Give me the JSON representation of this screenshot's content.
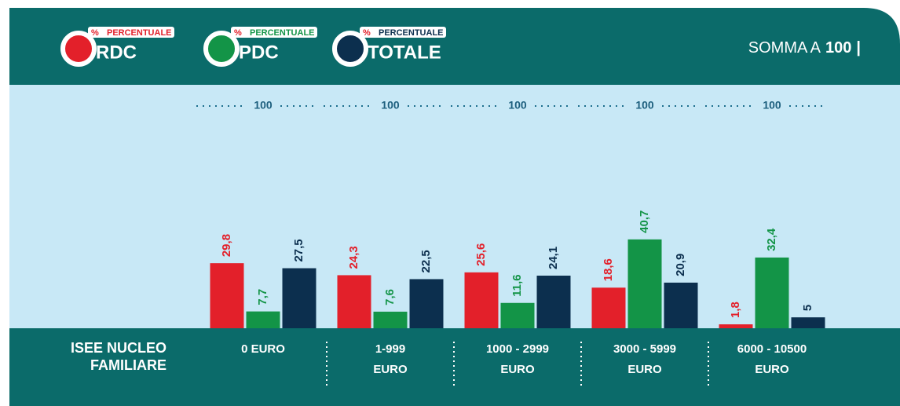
{
  "chart_data": {
    "type": "bar",
    "legend_tag": "PERCENTUALE",
    "percent_sign": "%",
    "summary": {
      "text": "SOMMA A",
      "value": 100,
      "separator": "|"
    },
    "group_sum": 100,
    "x_label": [
      "ISEE NUCLEO",
      "FAMILIARE"
    ],
    "categories": [
      [
        "0 EURO"
      ],
      [
        "1-999",
        "EURO"
      ],
      [
        "1000 - 2999",
        "EURO"
      ],
      [
        "3000 - 5999",
        "EURO"
      ],
      [
        "6000 - 10500",
        "EURO"
      ]
    ],
    "ylim": [
      0,
      100
    ],
    "series": [
      {
        "name": "RDC",
        "color": "#e3202a",
        "values": [
          29.8,
          24.3,
          25.6,
          18.6,
          1.8
        ],
        "value_labels": [
          "29,8",
          "24,3",
          "25,6",
          "18,6",
          "1,8"
        ]
      },
      {
        "name": "PDC",
        "color": "#139447",
        "values": [
          7.7,
          7.6,
          11.6,
          40.7,
          32.4
        ],
        "value_labels": [
          "7,7",
          "7,6",
          "11,6",
          "40,7",
          "32,4"
        ]
      },
      {
        "name": "TOTALE",
        "color": "#0c2f4e",
        "values": [
          27.5,
          22.5,
          24.1,
          20.9,
          5
        ],
        "value_labels": [
          "27,5",
          "22,5",
          "24,1",
          "20,9",
          "5"
        ]
      }
    ]
  }
}
